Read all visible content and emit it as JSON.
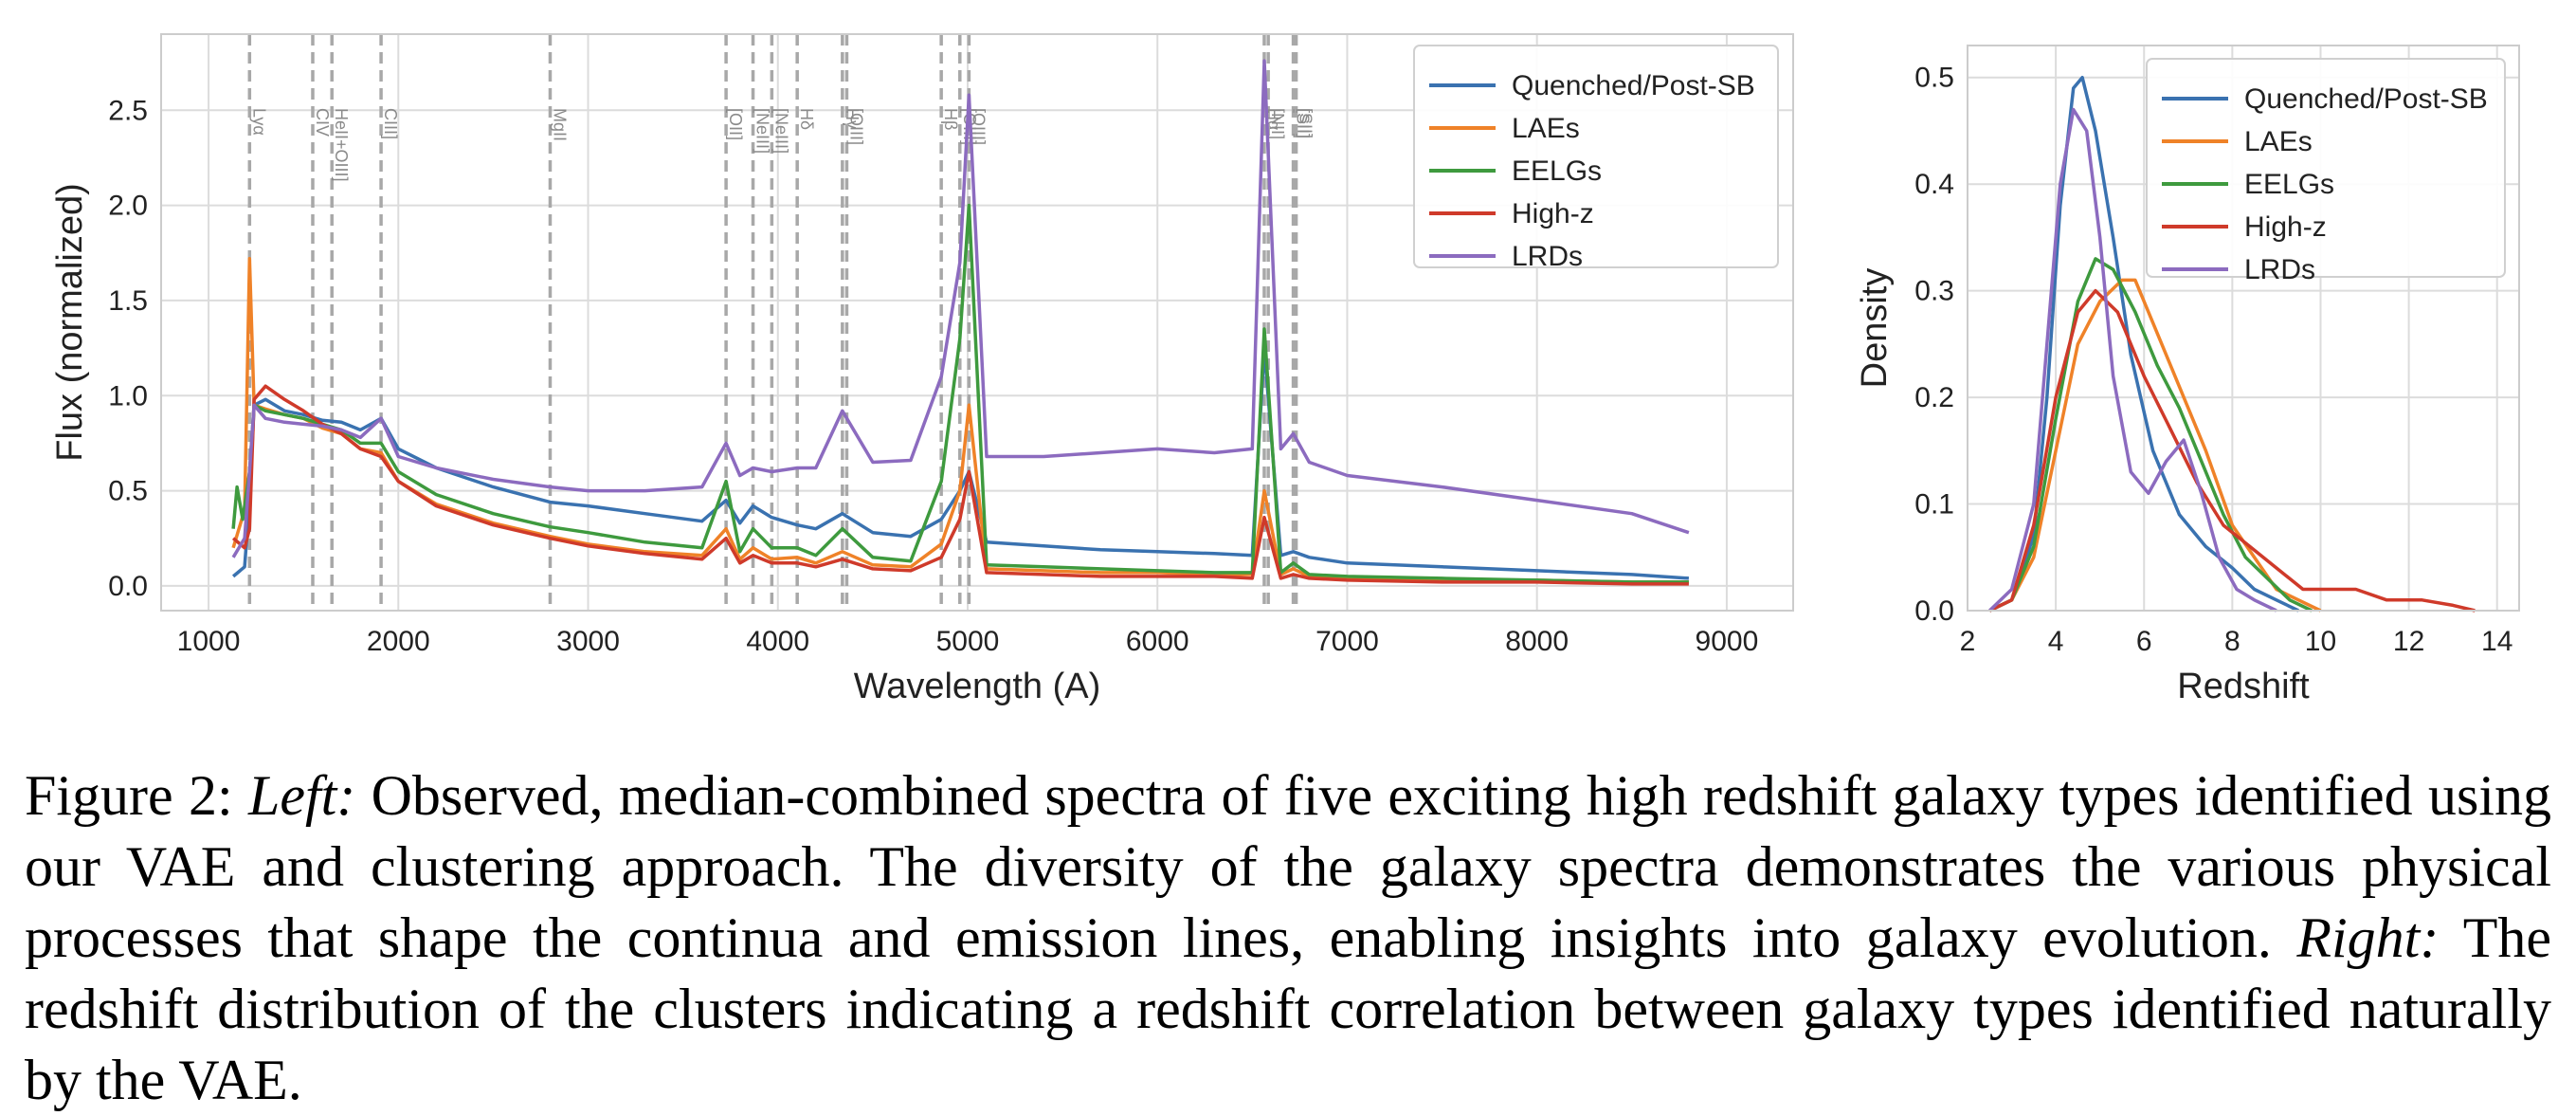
{
  "caption": {
    "label": "Figure 2:",
    "left_label": "Left:",
    "left_text": "Observed, median-combined spectra of five exciting high redshift galaxy types identified using our VAE and clustering approach. The diversity of the galaxy spectra demonstrates the various physical processes that shape the continua and emission lines, enabling insights into galaxy evolution.",
    "right_label": "Right:",
    "right_text": "The redshift distribution of the clusters indicating a redshift correlation between galaxy types identified naturally by the VAE."
  },
  "colors": {
    "Quenched/Post-SB": "#3a72b0",
    "LAEs": "#ef8228",
    "EELGs": "#3e9a3e",
    "High-z": "#cf3a2a",
    "LRDs": "#8c6bbf"
  },
  "chart_data": [
    {
      "type": "line",
      "title": "",
      "xlabel": "Wavelength (A)",
      "ylabel": "Flux (normalized)",
      "xlim": [
        750,
        9350
      ],
      "ylim": [
        -0.13,
        2.9
      ],
      "xticks": [
        1000,
        2000,
        3000,
        4000,
        5000,
        6000,
        7000,
        8000,
        9000
      ],
      "yticks": [
        0.0,
        0.5,
        1.0,
        1.5,
        2.0,
        2.5
      ],
      "ytick_labels": [
        "0.0",
        "0.5",
        "1.0",
        "1.5",
        "2.0",
        "2.5"
      ],
      "grid": true,
      "legend": "top-right",
      "line_markers": [
        {
          "label": "Lyα",
          "wavelength": 1216
        },
        {
          "label": "CIV",
          "wavelength": 1549
        },
        {
          "label": "HeII+OIII]",
          "wavelength": 1650
        },
        {
          "label": "CIII]",
          "wavelength": 1909
        },
        {
          "label": "MgII",
          "wavelength": 2800
        },
        {
          "label": "[OII]",
          "wavelength": 3727
        },
        {
          "label": "[NeIII]",
          "wavelength": 3869
        },
        {
          "label": "[NeIII]",
          "wavelength": 3968
        },
        {
          "label": "Hδ",
          "wavelength": 4102
        },
        {
          "label": "Hγ",
          "wavelength": 4340
        },
        {
          "label": "[OIII]",
          "wavelength": 4363
        },
        {
          "label": "Hβ",
          "wavelength": 4861
        },
        {
          "label": "[OIII]",
          "wavelength": 4959
        },
        {
          "label": "[OIII]",
          "wavelength": 5007
        },
        {
          "label": "Hα",
          "wavelength": 6563
        },
        {
          "label": "[NII]",
          "wavelength": 6584
        },
        {
          "label": "[SII]",
          "wavelength": 6716
        },
        {
          "label": "[SII]",
          "wavelength": 6731
        }
      ],
      "series": [
        {
          "name": "Quenched/Post-SB",
          "x": [
            1130,
            1190,
            1216,
            1240,
            1300,
            1400,
            1500,
            1600,
            1700,
            1800,
            1909,
            2000,
            2200,
            2500,
            2800,
            3000,
            3300,
            3600,
            3727,
            3800,
            3869,
            3968,
            4102,
            4200,
            4340,
            4500,
            4700,
            4861,
            4959,
            5007,
            5100,
            5400,
            5700,
            6000,
            6300,
            6500,
            6563,
            6650,
            6716,
            6800,
            7000,
            7500,
            8000,
            8500,
            8800
          ],
          "y": [
            0.05,
            0.1,
            0.45,
            0.95,
            0.98,
            0.92,
            0.9,
            0.87,
            0.86,
            0.82,
            0.88,
            0.72,
            0.62,
            0.52,
            0.44,
            0.42,
            0.38,
            0.34,
            0.45,
            0.33,
            0.42,
            0.36,
            0.32,
            0.3,
            0.38,
            0.28,
            0.26,
            0.35,
            0.5,
            0.6,
            0.23,
            0.21,
            0.19,
            0.18,
            0.17,
            0.16,
            1.25,
            0.16,
            0.18,
            0.15,
            0.12,
            0.1,
            0.08,
            0.06,
            0.04
          ]
        },
        {
          "name": "LAEs",
          "x": [
            1130,
            1190,
            1216,
            1240,
            1300,
            1400,
            1500,
            1600,
            1700,
            1800,
            1909,
            2000,
            2200,
            2500,
            2800,
            3000,
            3300,
            3600,
            3727,
            3800,
            3869,
            3968,
            4102,
            4200,
            4340,
            4500,
            4700,
            4861,
            4959,
            5007,
            5100,
            5400,
            5700,
            6000,
            6300,
            6500,
            6563,
            6650,
            6716,
            6800,
            7000,
            7500,
            8000,
            8500,
            8800
          ],
          "y": [
            0.2,
            0.4,
            1.72,
            0.95,
            0.93,
            0.9,
            0.88,
            0.83,
            0.8,
            0.72,
            0.7,
            0.55,
            0.43,
            0.33,
            0.26,
            0.22,
            0.18,
            0.16,
            0.3,
            0.14,
            0.2,
            0.14,
            0.15,
            0.12,
            0.18,
            0.11,
            0.1,
            0.22,
            0.5,
            0.95,
            0.09,
            0.08,
            0.07,
            0.07,
            0.06,
            0.06,
            0.5,
            0.06,
            0.09,
            0.05,
            0.04,
            0.03,
            0.03,
            0.02,
            0.02
          ]
        },
        {
          "name": "EELGs",
          "x": [
            1130,
            1150,
            1180,
            1216,
            1240,
            1300,
            1400,
            1500,
            1600,
            1700,
            1800,
            1909,
            2000,
            2200,
            2500,
            2800,
            3000,
            3300,
            3600,
            3727,
            3800,
            3869,
            3968,
            4102,
            4200,
            4340,
            4500,
            4700,
            4861,
            4959,
            5007,
            5100,
            5400,
            5700,
            6000,
            6300,
            6500,
            6563,
            6650,
            6716,
            6800,
            7000,
            7500,
            8000,
            8500,
            8800
          ],
          "y": [
            0.3,
            0.52,
            0.35,
            0.6,
            0.95,
            0.92,
            0.9,
            0.88,
            0.85,
            0.82,
            0.75,
            0.75,
            0.6,
            0.48,
            0.38,
            0.31,
            0.28,
            0.23,
            0.2,
            0.55,
            0.18,
            0.3,
            0.2,
            0.2,
            0.16,
            0.3,
            0.15,
            0.13,
            0.55,
            1.3,
            2.0,
            0.11,
            0.1,
            0.09,
            0.08,
            0.07,
            0.07,
            1.35,
            0.07,
            0.12,
            0.06,
            0.05,
            0.04,
            0.03,
            0.02,
            0.02
          ]
        },
        {
          "name": "High-z",
          "x": [
            1130,
            1190,
            1216,
            1240,
            1300,
            1400,
            1500,
            1600,
            1700,
            1800,
            1909,
            2000,
            2200,
            2500,
            2800,
            3000,
            3300,
            3600,
            3727,
            3800,
            3869,
            3968,
            4102,
            4200,
            4340,
            4500,
            4700,
            4861,
            4959,
            5007,
            5100,
            5400,
            5700,
            6000,
            6300,
            6500,
            6563,
            6650,
            6716,
            6800,
            7000,
            7500,
            8000,
            8500,
            8800
          ],
          "y": [
            0.25,
            0.2,
            0.3,
            0.98,
            1.05,
            0.98,
            0.92,
            0.85,
            0.8,
            0.72,
            0.68,
            0.55,
            0.42,
            0.32,
            0.25,
            0.21,
            0.17,
            0.14,
            0.25,
            0.12,
            0.16,
            0.12,
            0.12,
            0.1,
            0.14,
            0.09,
            0.08,
            0.15,
            0.35,
            0.6,
            0.07,
            0.06,
            0.05,
            0.05,
            0.05,
            0.04,
            0.36,
            0.04,
            0.06,
            0.04,
            0.03,
            0.02,
            0.02,
            0.01,
            0.01
          ]
        },
        {
          "name": "LRDs",
          "x": [
            1130,
            1190,
            1216,
            1240,
            1300,
            1400,
            1500,
            1600,
            1700,
            1800,
            1909,
            2000,
            2200,
            2500,
            2800,
            3000,
            3300,
            3600,
            3727,
            3800,
            3869,
            3968,
            4102,
            4200,
            4340,
            4500,
            4700,
            4861,
            4959,
            5007,
            5100,
            5400,
            5700,
            6000,
            6300,
            6500,
            6563,
            6650,
            6716,
            6800,
            7000,
            7500,
            8000,
            8500,
            8800
          ],
          "y": [
            0.15,
            0.25,
            0.6,
            0.95,
            0.88,
            0.86,
            0.85,
            0.84,
            0.82,
            0.78,
            0.88,
            0.68,
            0.62,
            0.56,
            0.52,
            0.5,
            0.5,
            0.52,
            0.75,
            0.58,
            0.62,
            0.6,
            0.62,
            0.62,
            0.92,
            0.65,
            0.66,
            1.1,
            1.7,
            2.58,
            0.68,
            0.68,
            0.7,
            0.72,
            0.7,
            0.72,
            2.76,
            0.72,
            0.8,
            0.65,
            0.58,
            0.52,
            0.45,
            0.38,
            0.28
          ]
        }
      ]
    },
    {
      "type": "line",
      "title": "",
      "xlabel": "Redshift",
      "ylabel": "Density",
      "xlim": [
        2,
        14.5
      ],
      "ylim": [
        0,
        0.53
      ],
      "xticks": [
        2,
        4,
        6,
        8,
        10,
        12,
        14
      ],
      "yticks": [
        0.0,
        0.1,
        0.2,
        0.3,
        0.4,
        0.5
      ],
      "ytick_labels": [
        "0.0",
        "0.1",
        "0.2",
        "0.3",
        "0.4",
        "0.5"
      ],
      "grid": true,
      "legend": "top-right",
      "series": [
        {
          "name": "Quenched/Post-SB",
          "x": [
            2.5,
            3.0,
            3.5,
            3.8,
            4.1,
            4.4,
            4.6,
            4.9,
            5.3,
            5.7,
            6.2,
            6.8,
            7.4,
            8.0,
            8.5,
            9.0,
            9.5
          ],
          "y": [
            0.0,
            0.01,
            0.07,
            0.2,
            0.38,
            0.49,
            0.5,
            0.45,
            0.35,
            0.24,
            0.15,
            0.09,
            0.06,
            0.04,
            0.02,
            0.01,
            0.0
          ]
        },
        {
          "name": "LAEs",
          "x": [
            2.5,
            3.0,
            3.5,
            4.0,
            4.5,
            5.0,
            5.5,
            5.8,
            6.2,
            6.8,
            7.4,
            8.0,
            8.5,
            9.0,
            9.5,
            10.0
          ],
          "y": [
            0.0,
            0.01,
            0.05,
            0.15,
            0.25,
            0.29,
            0.31,
            0.31,
            0.27,
            0.21,
            0.15,
            0.08,
            0.05,
            0.02,
            0.01,
            0.0
          ]
        },
        {
          "name": "EELGs",
          "x": [
            2.5,
            3.0,
            3.5,
            4.0,
            4.5,
            4.9,
            5.3,
            5.8,
            6.3,
            6.8,
            7.3,
            7.8,
            8.3,
            8.8,
            9.3,
            9.8
          ],
          "y": [
            0.0,
            0.01,
            0.06,
            0.18,
            0.29,
            0.33,
            0.32,
            0.28,
            0.23,
            0.19,
            0.14,
            0.09,
            0.05,
            0.03,
            0.01,
            0.0
          ]
        },
        {
          "name": "High-z",
          "x": [
            2.5,
            3.0,
            3.5,
            4.0,
            4.5,
            4.9,
            5.4,
            6.0,
            6.6,
            7.2,
            7.8,
            8.4,
            9.0,
            9.6,
            10.2,
            10.8,
            11.5,
            12.3,
            13.0,
            13.5
          ],
          "y": [
            0.0,
            0.01,
            0.08,
            0.2,
            0.28,
            0.3,
            0.28,
            0.22,
            0.17,
            0.12,
            0.08,
            0.06,
            0.04,
            0.02,
            0.02,
            0.02,
            0.01,
            0.01,
            0.005,
            0.0
          ]
        },
        {
          "name": "LRDs",
          "x": [
            2.5,
            3.0,
            3.5,
            3.8,
            4.1,
            4.4,
            4.7,
            5.0,
            5.3,
            5.7,
            6.1,
            6.5,
            6.9,
            7.3,
            7.7,
            8.1,
            8.5,
            9.0
          ],
          "y": [
            0.0,
            0.02,
            0.1,
            0.25,
            0.4,
            0.47,
            0.45,
            0.35,
            0.22,
            0.13,
            0.11,
            0.14,
            0.16,
            0.11,
            0.05,
            0.02,
            0.01,
            0.0
          ]
        }
      ]
    }
  ]
}
